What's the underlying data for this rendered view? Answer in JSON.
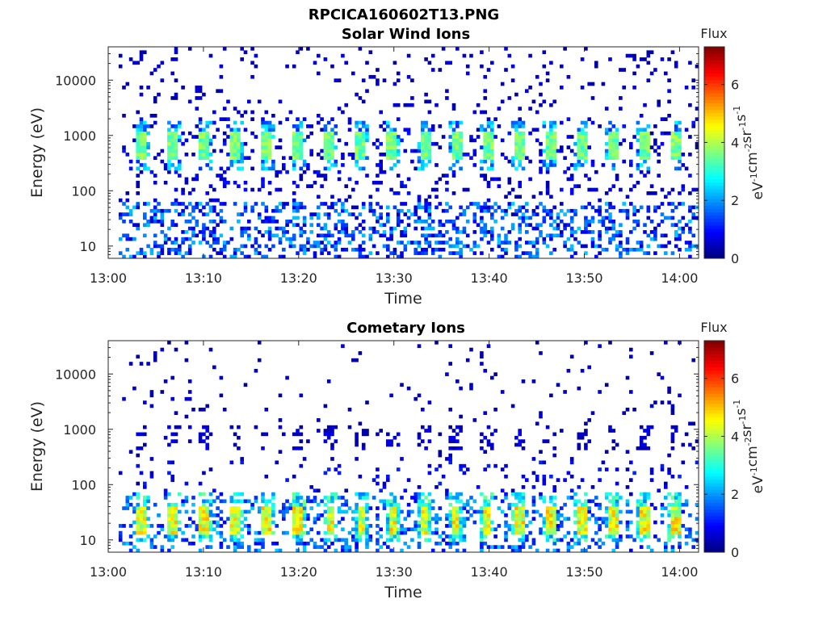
{
  "figure": {
    "title": "RPCICA160602T13.PNG"
  },
  "colormap": [
    "#00007f",
    "#0000ff",
    "#007fff",
    "#00ffff",
    "#7fff7f",
    "#ffff00",
    "#ff7f00",
    "#ff0000",
    "#7f0000"
  ],
  "chart_data": [
    {
      "type": "heatmap",
      "title": "Solar Wind Ions",
      "xlabel": "Time",
      "ylabel": "Energy (eV)",
      "x_range": [
        "13:00",
        "14:02"
      ],
      "x_ticks": [
        "13:00",
        "13:10",
        "13:20",
        "13:30",
        "13:40",
        "13:50",
        "14:00"
      ],
      "y_scale": "log",
      "y_range": [
        6,
        40000
      ],
      "y_ticks": [
        10,
        100,
        1000,
        10000
      ],
      "y_ticklabels": [
        "10",
        "100",
        "1000",
        "10000"
      ],
      "colorbar": {
        "title": "Flux",
        "label": "eV-1cm-2sr-1s-1",
        "range": [
          0,
          7.3
        ],
        "ticks": [
          0,
          2,
          4,
          6
        ],
        "ticklabels": [
          "0",
          "2",
          "4",
          "6"
        ]
      },
      "features": {
        "peak_energy_eV": 700,
        "peak_flux": 3.8,
        "burst_minutes": [
          3.5,
          6.8,
          10.1,
          13.4,
          16.7,
          20.0,
          23.3,
          26.6,
          29.9,
          33.2,
          36.5,
          39.8,
          43.1,
          46.4,
          49.7,
          53.0,
          56.3,
          59.6
        ],
        "low_energy_band_eV": [
          6,
          60
        ]
      }
    },
    {
      "type": "heatmap",
      "title": "Cometary Ions",
      "xlabel": "Time",
      "ylabel": "Energy (eV)",
      "x_range": [
        "13:00",
        "14:02"
      ],
      "x_ticks": [
        "13:00",
        "13:10",
        "13:20",
        "13:30",
        "13:40",
        "13:50",
        "14:00"
      ],
      "y_scale": "log",
      "y_range": [
        6,
        40000
      ],
      "y_ticks": [
        10,
        100,
        1000,
        10000
      ],
      "y_ticklabels": [
        "10",
        "100",
        "1000",
        "10000"
      ],
      "colorbar": {
        "title": "Flux",
        "label": "eV-1cm-2sr-1s-1",
        "range": [
          0,
          7.3
        ],
        "ticks": [
          0,
          2,
          4,
          6
        ],
        "ticklabels": [
          "0",
          "2",
          "4",
          "6"
        ]
      },
      "features": {
        "peak_energy_eV": 20,
        "peak_flux": 5.2,
        "burst_minutes": [
          3.5,
          6.8,
          10.1,
          13.4,
          16.7,
          20.0,
          23.3,
          26.6,
          29.9,
          33.2,
          36.5,
          39.8,
          43.1,
          46.4,
          49.7,
          53.0,
          56.3,
          59.6
        ],
        "secondary_band_eV": [
          500,
          1000
        ]
      }
    }
  ]
}
